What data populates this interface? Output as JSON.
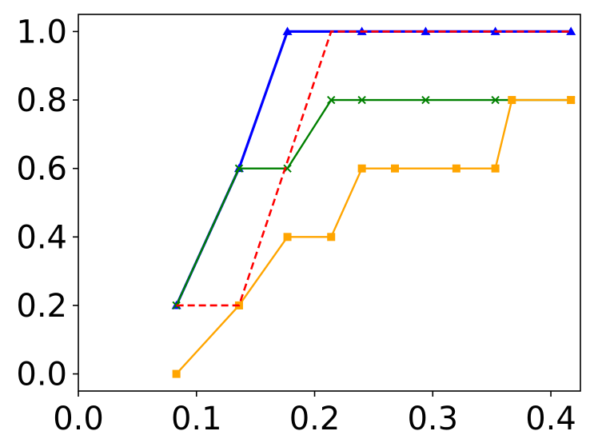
{
  "chart_data": {
    "type": "line",
    "title": "",
    "xlabel": "",
    "ylabel": "",
    "xlim": [
      0.0,
      0.425
    ],
    "ylim": [
      -0.05,
      1.05
    ],
    "grid": false,
    "legend": "none",
    "x_ticks": [
      0.0,
      0.1,
      0.2,
      0.3,
      0.4
    ],
    "x_tick_labels": [
      "0.0",
      "0.1",
      "0.2",
      "0.3",
      "0.4"
    ],
    "y_ticks": [
      0.0,
      0.2,
      0.4,
      0.6,
      0.8,
      1.0
    ],
    "y_tick_labels": [
      "0.0",
      "0.2",
      "0.4",
      "0.6",
      "0.8",
      "1.0"
    ],
    "series": [
      {
        "color": "#0000ff",
        "line_style": "solid",
        "marker": "triangle",
        "x": [
          0.083,
          0.136,
          0.177,
          0.24,
          0.294,
          0.353,
          0.417
        ],
        "y": [
          0.2,
          0.6,
          1.0,
          1.0,
          1.0,
          1.0,
          1.0
        ]
      },
      {
        "color": "#008000",
        "line_style": "solid",
        "marker": "x",
        "x": [
          0.083,
          0.136,
          0.177,
          0.214,
          0.24,
          0.294,
          0.353,
          0.417
        ],
        "y": [
          0.2,
          0.6,
          0.6,
          0.8,
          0.8,
          0.8,
          0.8,
          0.8
        ]
      },
      {
        "color": "#ffa500",
        "line_style": "solid",
        "marker": "square",
        "x": [
          0.083,
          0.136,
          0.177,
          0.214,
          0.24,
          0.268,
          0.32,
          0.353,
          0.367,
          0.417
        ],
        "y": [
          0.0,
          0.2,
          0.4,
          0.4,
          0.6,
          0.6,
          0.6,
          0.6,
          0.8,
          0.8
        ]
      },
      {
        "color": "#ff0000",
        "line_style": "dashed",
        "marker": "none",
        "x": [
          0.083,
          0.136,
          0.214,
          0.417
        ],
        "y": [
          0.2,
          0.2,
          1.0,
          1.0
        ]
      }
    ]
  }
}
